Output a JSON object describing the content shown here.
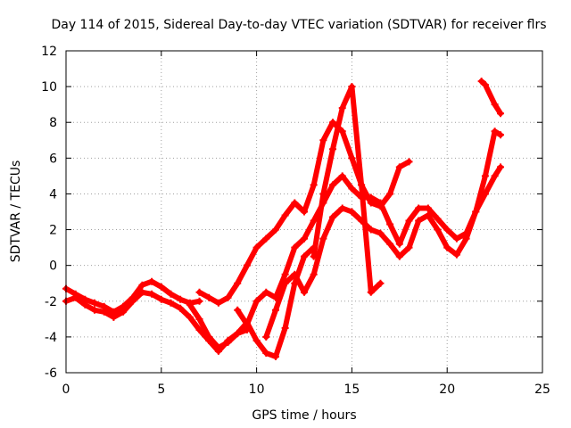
{
  "chart_data": {
    "type": "scatter",
    "title": "Day 114 of 2015, Sidereal Day-to-day VTEC variation (SDTVAR) for receiver flrs",
    "xlabel": "GPS time / hours",
    "ylabel": "SDTVAR / TECUs",
    "xlim": [
      0,
      25
    ],
    "ylim": [
      -6,
      12
    ],
    "xticks": [
      0,
      5,
      10,
      15,
      20,
      25
    ],
    "yticks": [
      -6,
      -4,
      -2,
      0,
      2,
      4,
      6,
      8,
      10,
      12
    ],
    "grid": true,
    "marker": "+",
    "color": "#ff0000",
    "series": [
      {
        "x": [
          0.0,
          0.5,
          1.0,
          1.5,
          2.0,
          2.5,
          3.0,
          3.5,
          4.0,
          4.5,
          5.0,
          5.5,
          6.0,
          6.5,
          7.0
        ],
        "y": [
          -1.3,
          -1.6,
          -1.9,
          -2.1,
          -2.3,
          -2.6,
          -2.3,
          -1.8,
          -1.1,
          -0.9,
          -1.2,
          -1.6,
          -1.9,
          -2.1,
          -2.0
        ]
      },
      {
        "x": [
          0.0,
          0.5,
          1.0,
          1.5,
          2.0,
          2.5,
          3.0,
          3.5,
          4.0,
          4.5,
          5.0,
          5.5,
          6.0,
          6.5,
          7.0,
          7.5,
          8.0,
          8.5,
          9.0,
          9.5
        ],
        "y": [
          -2.0,
          -1.8,
          -2.2,
          -2.5,
          -2.6,
          -2.9,
          -2.6,
          -2.0,
          -1.5,
          -1.6,
          -1.9,
          -2.1,
          -2.4,
          -2.9,
          -3.6,
          -4.2,
          -4.8,
          -4.2,
          -3.8,
          -3.6
        ]
      },
      {
        "x": [
          6.5,
          7.0,
          7.5,
          8.0,
          8.5,
          9.0,
          9.5,
          10.0,
          10.5,
          11.0,
          11.5,
          12.0,
          12.5,
          13.0
        ],
        "y": [
          -2.2,
          -3.0,
          -4.0,
          -4.6,
          -4.3,
          -3.8,
          -3.2,
          -4.2,
          -4.9,
          -5.1,
          -3.5,
          -1.0,
          0.5,
          1.0
        ]
      },
      {
        "x": [
          7.0,
          7.5,
          8.0,
          8.5,
          9.0,
          9.5,
          10.0,
          10.5,
          11.0,
          11.5,
          12.0,
          12.5,
          13.0,
          13.5,
          14.0,
          14.5,
          15.0,
          15.5,
          16.0,
          16.5,
          17.0,
          17.5,
          18.0
        ],
        "y": [
          -1.5,
          -1.8,
          -2.1,
          -1.8,
          -1.0,
          0.0,
          1.0,
          1.5,
          2.0,
          2.8,
          3.5,
          3.0,
          4.5,
          7.0,
          8.0,
          7.5,
          6.0,
          4.5,
          3.5,
          3.3,
          4.0,
          5.5,
          5.8
        ]
      },
      {
        "x": [
          9.0,
          9.5,
          10.0,
          10.5,
          11.0,
          11.5,
          12.0,
          12.5,
          13.0,
          13.5,
          14.0,
          14.5,
          15.0,
          15.5,
          16.0,
          16.5,
          17.0,
          17.5,
          18.0,
          18.5,
          19.0,
          19.5,
          20.0,
          20.5,
          21.0,
          21.5,
          22.0,
          22.5,
          22.8
        ],
        "y": [
          -2.5,
          -3.3,
          -2.0,
          -1.5,
          -1.8,
          -0.5,
          1.0,
          1.5,
          2.5,
          3.5,
          4.5,
          5.0,
          4.3,
          3.8,
          3.8,
          3.5,
          2.3,
          1.2,
          2.5,
          3.2,
          3.2,
          2.6,
          2.0,
          1.5,
          1.8,
          3.0,
          5.0,
          7.5,
          7.3
        ]
      },
      {
        "x": [
          10.5,
          11.0,
          11.5,
          12.0,
          12.5,
          13.0,
          13.5,
          14.0,
          14.5,
          15.0,
          15.5,
          16.0,
          16.5,
          17.0,
          17.5,
          18.0,
          18.5,
          19.0,
          19.5,
          20.0,
          20.5,
          21.0,
          21.5,
          22.0,
          22.5,
          22.8
        ],
        "y": [
          -4.0,
          -2.5,
          -1.0,
          -0.5,
          -1.5,
          -0.5,
          1.5,
          2.7,
          3.2,
          3.0,
          2.5,
          2.0,
          1.8,
          1.2,
          0.5,
          1.0,
          2.5,
          2.8,
          2.0,
          1.0,
          0.6,
          1.5,
          3.0,
          4.0,
          5.0,
          5.5
        ]
      },
      {
        "x": [
          13.0,
          13.5,
          14.0,
          14.5,
          15.0,
          15.5,
          16.0,
          16.5
        ],
        "y": [
          0.5,
          4.0,
          6.5,
          8.8,
          10.0,
          4.5,
          -1.5,
          -1.0
        ]
      },
      {
        "x": [
          21.8,
          22.0,
          22.5,
          22.8
        ],
        "y": [
          10.3,
          10.1,
          9.0,
          8.5
        ]
      }
    ]
  }
}
